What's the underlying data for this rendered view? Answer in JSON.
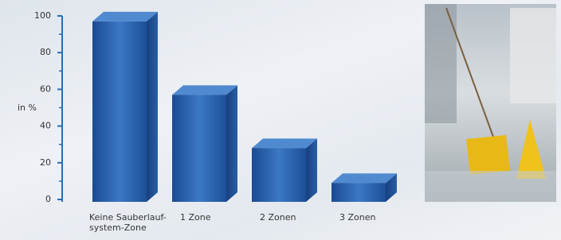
{
  "chart_data": {
    "type": "bar3d",
    "y_label": "in %",
    "categories": [
      "Keine Sauberlauf-\nsystem-Zone",
      "1 Zone",
      "2 Zonen",
      "3 Zonen"
    ],
    "values": [
      97,
      57,
      28,
      9
    ],
    "color": "#2a63b0",
    "ylim": [
      0,
      100
    ],
    "yticks": [
      0,
      20,
      40,
      60,
      80,
      100
    ],
    "grid": false
  }
}
